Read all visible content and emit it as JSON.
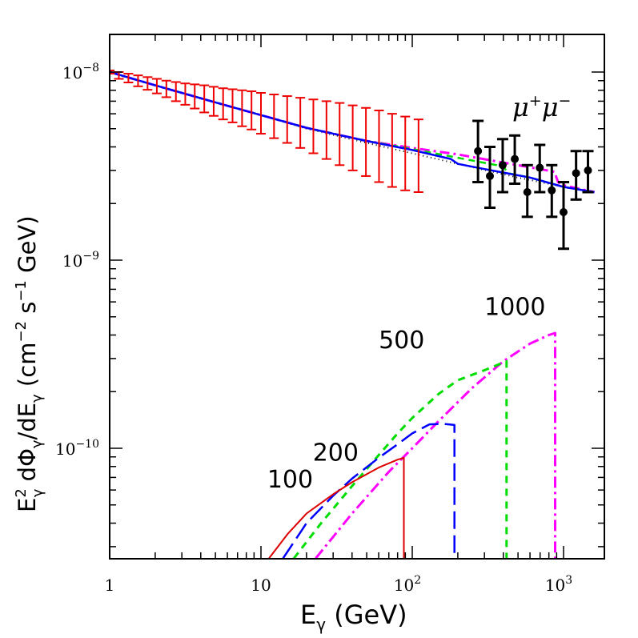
{
  "chart_data": {
    "type": "line",
    "x_scale": "log",
    "y_scale": "log",
    "xlim": [
      1,
      1600
    ],
    "ylim": [
      2.6e-11,
      1.6e-08
    ],
    "xlabel": {
      "main": "E",
      "sub": "γ",
      "unit": " (GeV)"
    },
    "ylabel": {
      "p1": "E",
      "p1_sup": "2",
      "p1_sub": "γ",
      "p2": " dΦ",
      "p2_sub": "γ",
      "p3": "/dE",
      "p3_sub": "γ",
      "p4": " (cm",
      "p4_sup": "−2",
      "p5": " s",
      "p5_sup": "−1",
      "p6": " GeV)"
    },
    "x_tick_labels": [
      {
        "value": 1,
        "base": "1",
        "exp": ""
      },
      {
        "value": 10,
        "base": "10",
        "exp": ""
      },
      {
        "value": 100,
        "base": "10",
        "exp": "2"
      },
      {
        "value": 1000,
        "base": "10",
        "exp": "3"
      }
    ],
    "y_tick_labels": [
      {
        "value": 1e-08,
        "base": "10",
        "exp": "−8"
      },
      {
        "value": 1e-09,
        "base": "10",
        "exp": "−9"
      },
      {
        "value": 1e-10,
        "base": "10",
        "exp": "−10"
      }
    ],
    "annotation": {
      "base_a": "μ",
      "sup_a": "+",
      "base_b": "μ",
      "sup_b": "−"
    },
    "curve_labels": [
      {
        "text": "100",
        "x": 11,
        "y": 6.2e-11
      },
      {
        "text": "200",
        "x": 22,
        "y": 8.6e-11
      },
      {
        "text": "500",
        "x": 60,
        "y": 3.4e-10
      },
      {
        "text": "1000",
        "x": 300,
        "y": 5.1e-10
      }
    ],
    "series": [
      {
        "key": "background",
        "color": "#000000",
        "dash": "1,4",
        "width": 2,
        "x": [
          1,
          2,
          5,
          10,
          20,
          50,
          100,
          200,
          500,
          1000,
          1600
        ],
        "y": [
          1e-08,
          8.5e-09,
          6.9e-09,
          5.9e-09,
          5e-09,
          4.2e-09,
          3.7e-09,
          3.25e-09,
          2.75e-09,
          2.45e-09,
          2.3e-09
        ]
      },
      {
        "key": "bg_plus_1000",
        "color": "#ff00ff",
        "dash": "12,5,3,5",
        "width": 3,
        "x": [
          1,
          2,
          5,
          10,
          20,
          50,
          100,
          200,
          400,
          700,
          870,
          920,
          1000,
          1600
        ],
        "y": [
          1e-08,
          8.5e-09,
          6.9e-09,
          5.9e-09,
          5.05e-09,
          4.3e-09,
          3.95e-09,
          3.65e-09,
          3.3e-09,
          3.05e-09,
          2.95e-09,
          2.6e-09,
          2.5e-09,
          2.3e-09
        ]
      },
      {
        "key": "bg_plus_500",
        "color": "#00dd00",
        "dash": "8,6",
        "width": 2.5,
        "x": [
          1,
          2,
          5,
          10,
          20,
          50,
          100,
          200,
          400,
          430,
          600,
          1000,
          1600
        ],
        "y": [
          1e-08,
          8.5e-09,
          6.9e-09,
          5.9e-09,
          5.05e-09,
          4.3e-09,
          3.9e-09,
          3.5e-09,
          3.15e-09,
          2.9e-09,
          2.75e-09,
          2.45e-09,
          2.3e-09
        ]
      },
      {
        "key": "bg_plus_200",
        "color": "#0000ff",
        "dash": "",
        "width": 2.5,
        "x": [
          1,
          2,
          5,
          10,
          20,
          50,
          100,
          180,
          200,
          300,
          600,
          1000,
          1600
        ],
        "y": [
          1e-08,
          8.5e-09,
          6.9e-09,
          5.9e-09,
          5.05e-09,
          4.3e-09,
          3.85e-09,
          3.45e-09,
          3.25e-09,
          3.05e-09,
          2.75e-09,
          2.45e-09,
          2.3e-09
        ]
      },
      {
        "key": "signal_1000",
        "color": "#ff00ff",
        "dash": "14,5,3,5",
        "width": 3,
        "x": [
          23,
          40,
          70,
          100,
          150,
          250,
          400,
          600,
          800,
          880,
          880
        ],
        "y": [
          2.6e-11,
          4.5e-11,
          7.5e-11,
          1e-10,
          1.4e-10,
          2.1e-10,
          2.9e-10,
          3.6e-10,
          4e-10,
          4.1e-10,
          2.6e-11
        ]
      },
      {
        "key": "signal_500",
        "color": "#00dd00",
        "dash": "9,7",
        "width": 3,
        "x": [
          16.5,
          25,
          40,
          60,
          80,
          100,
          150,
          200,
          300,
          420,
          420
        ],
        "y": [
          2.6e-11,
          4e-11,
          6.3e-11,
          9.2e-11,
          1.2e-10,
          1.45e-10,
          1.95e-10,
          2.3e-10,
          2.6e-10,
          2.9e-10,
          2.6e-11
        ]
      },
      {
        "key": "signal_200",
        "color": "#0000ff",
        "dash": "22,8",
        "width": 2.5,
        "x": [
          14,
          20,
          30,
          40,
          60,
          80,
          100,
          130,
          160,
          190,
          190
        ],
        "y": [
          2.6e-11,
          4e-11,
          5.6e-11,
          6.9e-11,
          8.9e-11,
          1.05e-10,
          1.2e-10,
          1.34e-10,
          1.35e-10,
          1.33e-10,
          2.6e-11
        ]
      },
      {
        "key": "signal_100",
        "color": "#dd0000",
        "dash": "",
        "width": 2,
        "x": [
          11.3,
          15,
          20,
          30,
          40,
          60,
          80,
          88,
          88
        ],
        "y": [
          2.6e-11,
          3.5e-11,
          4.5e-11,
          5.7e-11,
          6.6e-11,
          7.9e-11,
          8.7e-11,
          8.9e-11,
          2.6e-11
        ]
      }
    ],
    "error_bars_red": {
      "color": "#ee0000",
      "x": [
        1.0,
        1.15,
        1.33,
        1.54,
        1.78,
        2.05,
        2.37,
        2.74,
        3.16,
        3.65,
        4.22,
        4.87,
        5.62,
        6.49,
        7.5,
        8.66,
        10.0,
        12.2,
        14.9,
        18.2,
        22.2,
        27.1,
        33.1,
        40.4,
        49.4,
        60.3,
        73.6,
        89.9,
        110
      ],
      "y": [
        1e-08,
        9.6e-09,
        9.3e-09,
        9e-09,
        8.7e-09,
        8.45e-09,
        8.2e-09,
        7.95e-09,
        7.7e-09,
        7.5e-09,
        7.3e-09,
        7.1e-09,
        6.9e-09,
        6.75e-09,
        6.55e-09,
        6.4e-09,
        6.2e-09,
        6e-09,
        5.8e-09,
        5.6e-09,
        5.4e-09,
        5.2e-09,
        5e-09,
        4.8e-09,
        4.6e-09,
        4.4e-09,
        4.2e-09,
        4.05e-09,
        3.85e-09
      ],
      "lo": [
        9.8e-09,
        9.2e-09,
        8.8e-09,
        8.4e-09,
        8.05e-09,
        7.7e-09,
        7.35e-09,
        7e-09,
        6.7e-09,
        6.4e-09,
        6.1e-09,
        5.85e-09,
        5.6e-09,
        5.4e-09,
        5.15e-09,
        4.95e-09,
        4.7e-09,
        4.45e-09,
        4.2e-09,
        3.95e-09,
        3.7e-09,
        3.45e-09,
        3.2e-09,
        3e-09,
        2.8e-09,
        2.6e-09,
        2.45e-09,
        2.35e-09,
        2.3e-09
      ],
      "hi": [
        1.02e-08,
        1e-08,
        9.8e-09,
        9.6e-09,
        9.4e-09,
        9.2e-09,
        9e-09,
        8.85e-09,
        8.7e-09,
        8.6e-09,
        8.5e-09,
        8.35e-09,
        8.2e-09,
        8.1e-09,
        8e-09,
        7.9e-09,
        7.75e-09,
        7.6e-09,
        7.45e-09,
        7.3e-09,
        7.15e-09,
        7e-09,
        6.85e-09,
        6.65e-09,
        6.45e-09,
        6.25e-09,
        6e-09,
        5.8e-09,
        5.6e-09
      ]
    },
    "data_points_black": {
      "color": "#000000",
      "x": [
        272,
        326,
        396,
        476,
        576,
        696,
        836,
        1000,
        1210,
        1450
      ],
      "y": [
        3.8e-09,
        2.8e-09,
        3.2e-09,
        3.45e-09,
        2.3e-09,
        3.1e-09,
        2.35e-09,
        1.8e-09,
        2.9e-09,
        3e-09
      ],
      "lo": [
        2.6e-09,
        1.9e-09,
        2.3e-09,
        2.55e-09,
        1.7e-09,
        2.3e-09,
        1.7e-09,
        1.15e-09,
        2.1e-09,
        2.3e-09
      ],
      "hi": [
        5.5e-09,
        4e-09,
        4.4e-09,
        4.6e-09,
        3.2e-09,
        4.1e-09,
        3.2e-09,
        2.6e-09,
        3.8e-09,
        3.8e-09
      ]
    }
  }
}
